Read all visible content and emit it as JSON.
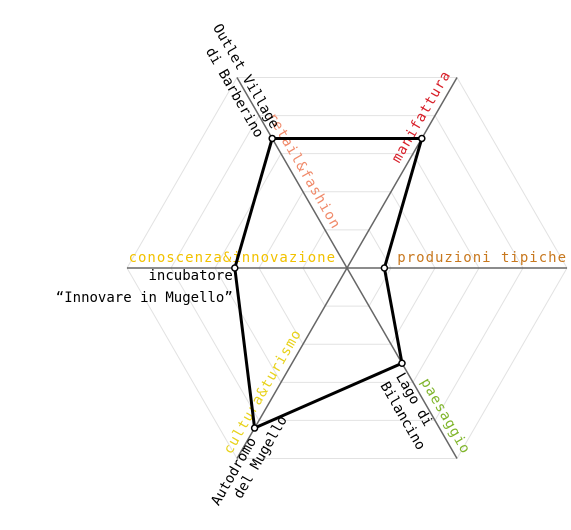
{
  "chart_data": {
    "type": "radar",
    "categories": [
      "produzioni tipiche",
      "manifattura",
      "retail&fashion",
      "conoscenza&innovazione",
      "cultura&turismo",
      "paesaggio"
    ],
    "category_colors": [
      "#c8781e",
      "#d8202a",
      "#f08a6a",
      "#f2c200",
      "#e8d21a",
      "#7fb52a"
    ],
    "values": [
      0.17,
      0.68,
      0.68,
      0.51,
      0.84,
      0.5
    ],
    "color": "#000000",
    "point_labels": [
      null,
      null,
      [
        "Outlet Village",
        "di Barberino"
      ],
      [
        "incubatore",
        "“Innovare in Mugello”"
      ],
      [
        "Autodromo",
        "del Mugello"
      ],
      [
        "Lago di",
        "Bilancino"
      ]
    ],
    "rlim": [
      0,
      1
    ],
    "rticks": [
      0.2,
      0.4,
      0.6,
      0.8,
      1.0
    ],
    "grid": true
  }
}
